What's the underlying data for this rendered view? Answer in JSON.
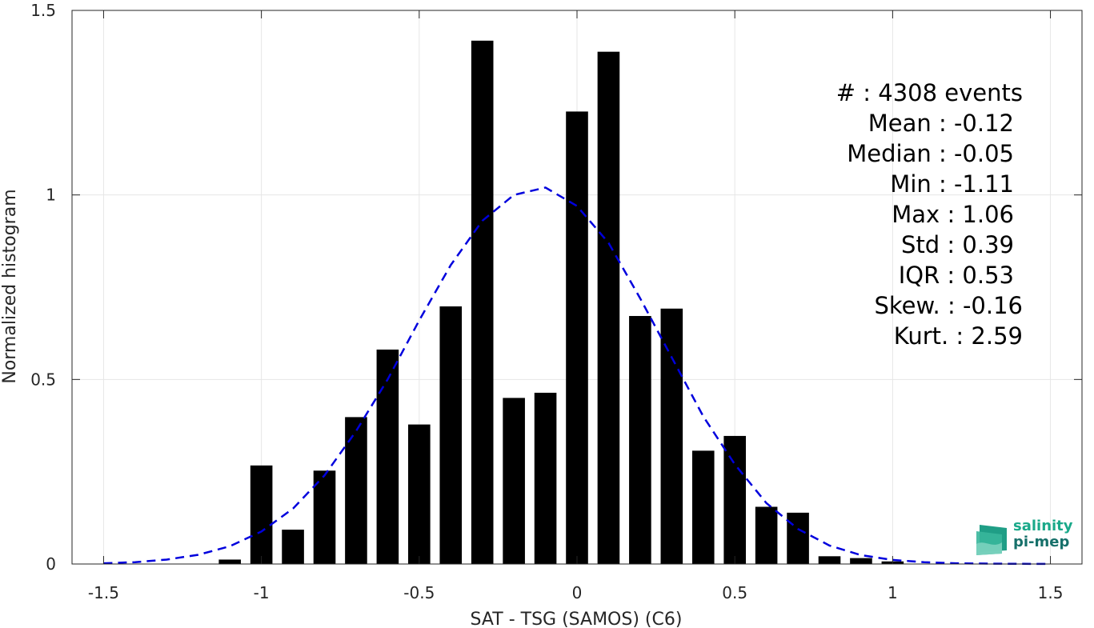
{
  "chart_data": {
    "type": "bar",
    "xlabel": "SAT - TSG (SAMOS) (C6)",
    "ylabel": "Normalized histogram",
    "xlim": [
      -1.6,
      1.6
    ],
    "ylim": [
      0,
      1.5
    ],
    "xticks": [
      -1.5,
      -1,
      -0.5,
      0,
      0.5,
      1,
      1.5
    ],
    "xtick_labels": [
      "-1.5",
      "-1",
      "-0.5",
      "0",
      "0.5",
      "1",
      "1.5"
    ],
    "yticks": [
      0,
      0.5,
      1,
      1.5
    ],
    "ytick_labels": [
      "0",
      "0.5",
      "1",
      "1.5"
    ],
    "grid": true,
    "bar_width": 0.07,
    "series": [
      {
        "type": "bar",
        "color": "#000000",
        "x": [
          -1.1,
          -1.0,
          -0.9,
          -0.8,
          -0.7,
          -0.6,
          -0.5,
          -0.4,
          -0.3,
          -0.2,
          -0.1,
          0.0,
          0.1,
          0.2,
          0.3,
          0.4,
          0.5,
          0.6,
          0.7,
          0.8,
          0.9,
          1.0
        ],
        "values": [
          0.012,
          0.267,
          0.093,
          0.253,
          0.398,
          0.581,
          0.378,
          0.698,
          1.418,
          0.45,
          0.464,
          1.226,
          1.388,
          0.672,
          0.692,
          0.307,
          0.347,
          0.155,
          0.139,
          0.021,
          0.016,
          0.007
        ]
      },
      {
        "type": "line",
        "style": "dashed",
        "color": "#0000dd",
        "x": [
          -1.5,
          -1.4,
          -1.3,
          -1.2,
          -1.1,
          -1.0,
          -0.9,
          -0.8,
          -0.7,
          -0.6,
          -0.5,
          -0.4,
          -0.3,
          -0.2,
          -0.1,
          0.0,
          0.1,
          0.2,
          0.3,
          0.4,
          0.5,
          0.6,
          0.7,
          0.8,
          0.9,
          1.0,
          1.1,
          1.2,
          1.3,
          1.4,
          1.5
        ],
        "values": [
          0.002,
          0.005,
          0.012,
          0.025,
          0.048,
          0.088,
          0.15,
          0.24,
          0.36,
          0.5,
          0.66,
          0.81,
          0.93,
          1.0,
          1.02,
          0.97,
          0.87,
          0.72,
          0.56,
          0.4,
          0.27,
          0.165,
          0.095,
          0.05,
          0.024,
          0.011,
          0.005,
          0.002,
          0.001,
          0.0005,
          0.0002
        ]
      }
    ],
    "stats": [
      {
        "label": "#  : 4308 events"
      },
      {
        "label": "Mean : -0.12"
      },
      {
        "label": "Median : -0.05"
      },
      {
        "label": "Min : -1.11"
      },
      {
        "label": "Max : 1.06"
      },
      {
        "label": "Std : 0.39"
      },
      {
        "label": "IQR : 0.53"
      },
      {
        "label": "Skew. : -0.16"
      },
      {
        "label": "Kurt. : 2.59"
      }
    ]
  },
  "logo": {
    "line1": "salinity",
    "line2": "pi-mep",
    "color1": "#1aa98a",
    "color2": "#16706a"
  }
}
